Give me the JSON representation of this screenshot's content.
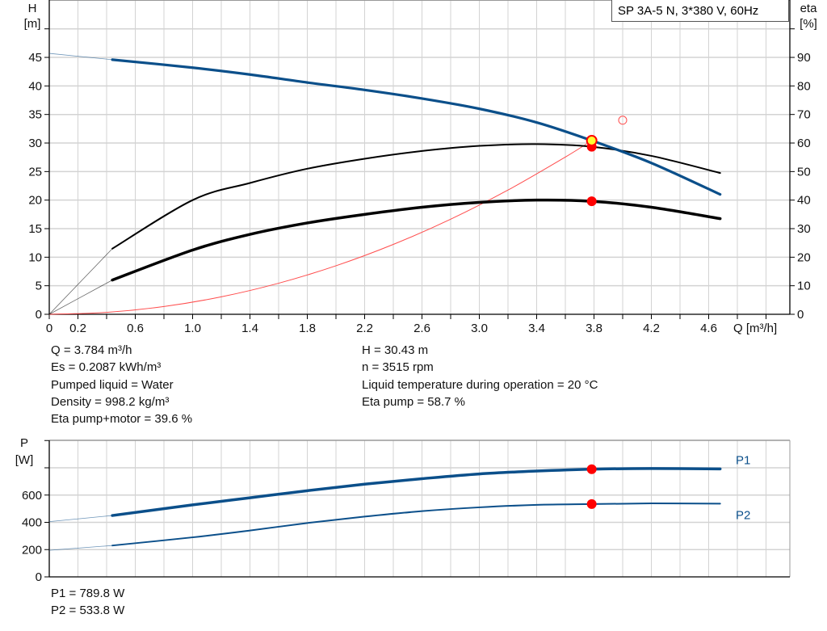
{
  "model_label": "SP 3A-5 N, 3*380 V, 60Hz",
  "colors": {
    "head": "#0b4f8a",
    "efficiency": "#000000",
    "system": "#ff4d4d",
    "power": "#0b4f8a",
    "duty_point": "#ff0000",
    "duty_highlight": "#ffff33",
    "grid": "#d3d3d3"
  },
  "chart_data": [
    {
      "type": "line",
      "xlabel": "Q [m³/h]",
      "ylabel_left": "H",
      "ylabel_left_unit": "[m]",
      "ylabel_right": "eta",
      "ylabel_right_unit": "[%]",
      "xlim": [
        0,
        5.2
      ],
      "ylim_left": [
        0,
        55
      ],
      "ylim_right": [
        0,
        110
      ],
      "x_ticks": [
        "0",
        "0.2",
        "0.6",
        "1.0",
        "1.4",
        "1.8",
        "2.2",
        "2.6",
        "3.0",
        "3.4",
        "3.8",
        "4.2",
        "4.6"
      ],
      "y_ticks_left": [
        "0",
        "5",
        "10",
        "15",
        "20",
        "25",
        "30",
        "35",
        "40",
        "45"
      ],
      "y_ticks_right": [
        "0",
        "10",
        "20",
        "30",
        "40",
        "50",
        "60",
        "70",
        "80",
        "90"
      ],
      "grid": true,
      "series": [
        {
          "key": "H",
          "axis": "left",
          "x": [
            0,
            0.44,
            1.0,
            1.4,
            1.8,
            2.2,
            2.6,
            3.0,
            3.4,
            3.784,
            4.2,
            4.68
          ],
          "y": [
            45.7,
            44.6,
            43.2,
            42.0,
            40.6,
            39.3,
            37.8,
            36.0,
            33.6,
            30.43,
            26.5,
            21.0
          ]
        },
        {
          "key": "eta_pump",
          "axis": "right",
          "x": [
            0,
            0.44,
            1.0,
            1.4,
            1.8,
            2.2,
            2.6,
            3.0,
            3.4,
            3.784,
            4.2,
            4.68
          ],
          "y": [
            0,
            23,
            40,
            46,
            51,
            54.5,
            57.2,
            59,
            59.6,
            58.7,
            55.5,
            49.5
          ]
        },
        {
          "key": "eta_pump_motor",
          "axis": "right",
          "x": [
            0,
            0.44,
            1.0,
            1.4,
            1.8,
            2.2,
            2.6,
            3.0,
            3.4,
            3.784,
            4.2,
            4.68
          ],
          "y": [
            0,
            12,
            22.5,
            28,
            32,
            35,
            37.5,
            39.2,
            40,
            39.6,
            37.5,
            33.5
          ]
        },
        {
          "key": "system",
          "axis": "left",
          "x": [
            0,
            0.4,
            0.8,
            1.2,
            1.6,
            2.0,
            2.4,
            2.8,
            3.2,
            3.6,
            3.784
          ],
          "y": [
            0,
            0.34,
            1.36,
            3.06,
            5.44,
            8.5,
            12.24,
            16.66,
            21.76,
            27.54,
            30.43
          ]
        }
      ],
      "duty_point": {
        "Q": 3.784,
        "H": 30.43,
        "eta_pump": 58.7,
        "eta_pump_motor": 39.6
      },
      "requested_point": {
        "Q": 4.0,
        "H": 34
      }
    },
    {
      "type": "line",
      "xlabel": "",
      "ylabel": "P",
      "ylabel_unit": "[W]",
      "xlim": [
        0,
        5.2
      ],
      "ylim": [
        0,
        1000
      ],
      "y_ticks": [
        "0",
        "200",
        "400",
        "600"
      ],
      "grid": true,
      "series": [
        {
          "name": "P1",
          "x": [
            0,
            0.44,
            1.0,
            1.4,
            1.8,
            2.2,
            2.6,
            3.0,
            3.4,
            3.784,
            4.2,
            4.68
          ],
          "y": [
            405,
            450,
            528,
            580,
            632,
            680,
            720,
            755,
            776,
            789.8,
            795,
            792
          ]
        },
        {
          "name": "P2",
          "x": [
            0,
            0.44,
            1.0,
            1.4,
            1.8,
            2.2,
            2.6,
            3.0,
            3.4,
            3.784,
            4.2,
            4.68
          ],
          "y": [
            195,
            230,
            290,
            340,
            395,
            442,
            482,
            510,
            528,
            533.8,
            539,
            537
          ]
        }
      ],
      "duty_point": {
        "Q": 3.784,
        "P1": 789.8,
        "P2": 533.8
      }
    }
  ],
  "info_left": [
    "Q = 3.784 m³/h",
    "Es = 0.2087 kWh/m³",
    "Pumped liquid = Water",
    "Density = 998.2 kg/m³",
    "Eta pump+motor = 39.6 %"
  ],
  "info_right": [
    "H = 30.43 m",
    "n = 3515 rpm",
    "Liquid temperature during operation = 20 °C",
    "Eta pump = 58.7 %"
  ],
  "power_info": [
    "P1 = 789.8 W",
    "P2 = 533.8 W"
  ]
}
